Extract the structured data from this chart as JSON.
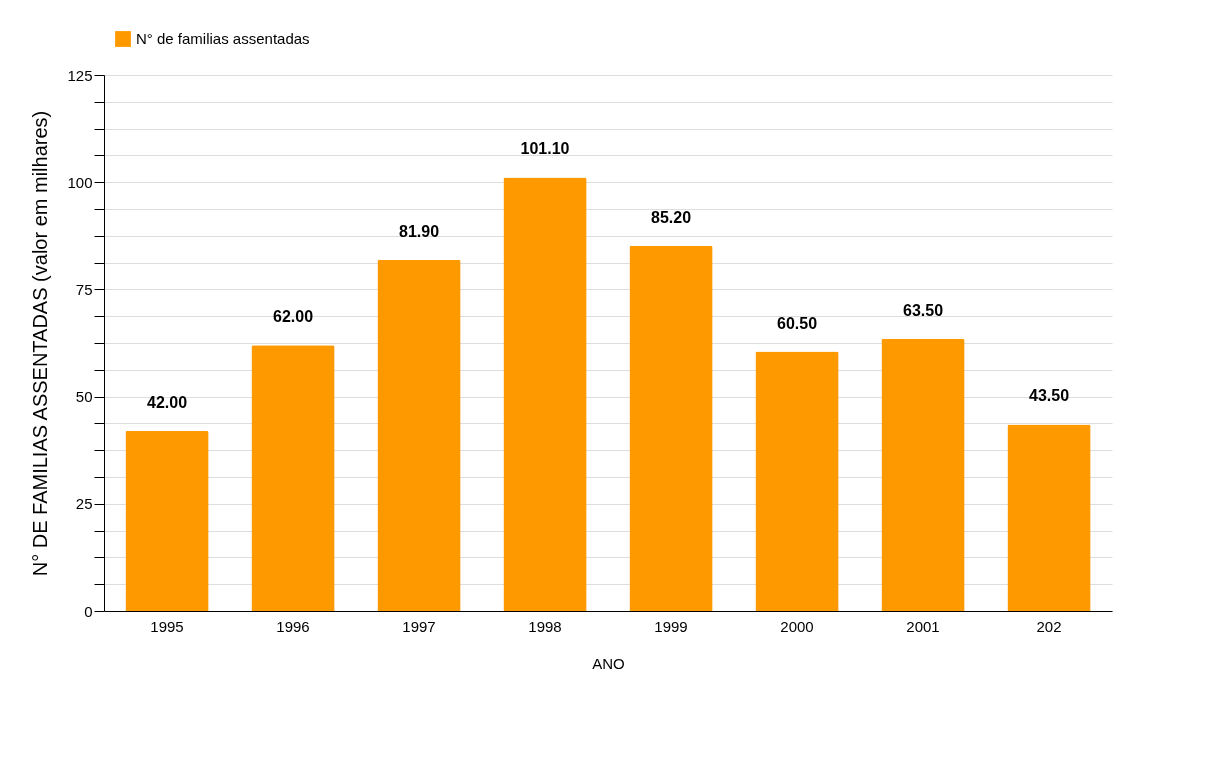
{
  "chart_data": {
    "type": "bar",
    "categories": [
      "1995",
      "1996",
      "1997",
      "1998",
      "1999",
      "2000",
      "2001",
      "202"
    ],
    "series": [
      {
        "name": "N° de familias assentadas",
        "color": "#ff9900",
        "values": [
          42.0,
          62.0,
          81.9,
          101.1,
          85.2,
          60.5,
          63.5,
          43.5
        ],
        "value_labels": [
          "42.00",
          "62.00",
          "81.90",
          "101.10",
          "85.20",
          "60.50",
          "63.50",
          "43.50"
        ]
      }
    ],
    "xlabel": "ANO",
    "ylabel": "N° DE FAMILIAS ASSENTADAS (valor em milhares)",
    "ylim": [
      0,
      125
    ],
    "yticks": [
      0,
      {
        "value": 6.25,
        "label": null
      },
      {
        "value": 12.5,
        "label": null
      },
      {
        "value": 18.75,
        "label": null
      },
      25,
      {
        "value": 31.25,
        "label": null
      },
      {
        "value": 37.5,
        "label": null
      },
      {
        "value": 43.75,
        "label": null
      },
      50,
      {
        "value": 56.25,
        "label": null
      },
      {
        "value": 62.5,
        "label": null
      },
      {
        "value": 68.75,
        "label": null
      },
      75,
      {
        "value": 81.25,
        "label": null
      },
      {
        "value": 87.5,
        "label": null
      },
      {
        "value": 93.75,
        "label": null
      },
      100,
      {
        "value": 106.25,
        "label": null
      },
      {
        "value": 112.5,
        "label": null
      },
      {
        "value": 118.75,
        "label": null
      },
      125
    ],
    "grid": "y",
    "legend": "top"
  }
}
